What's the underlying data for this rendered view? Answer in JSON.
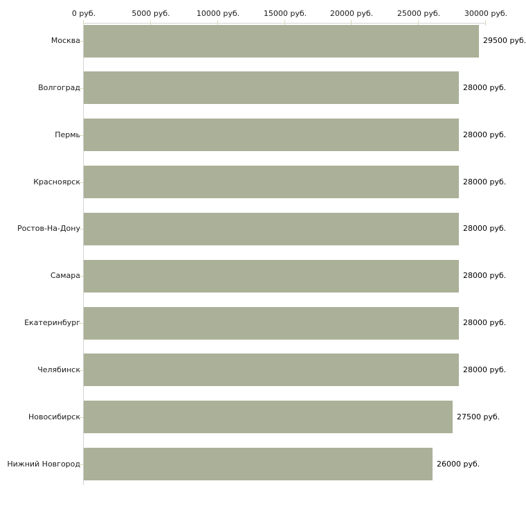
{
  "chart_data": {
    "type": "bar",
    "orientation": "horizontal",
    "title": "",
    "xlabel": "",
    "ylabel": "",
    "categories": [
      "Москва",
      "Волгоград",
      "Пермь",
      "Красноярск",
      "Ростов-На-Дону",
      "Самара",
      "Екатеринбург",
      "Челябинск",
      "Новосибирск",
      "Нижний Новгород"
    ],
    "values": [
      29500,
      28000,
      28000,
      28000,
      28000,
      28000,
      28000,
      28000,
      27500,
      26000
    ],
    "value_labels": [
      "29500 руб.",
      "28000 руб.",
      "28000 руб.",
      "28000 руб.",
      "28000 руб.",
      "28000 руб.",
      "28000 руб.",
      "28000 руб.",
      "27500 руб.",
      "26000 руб."
    ],
    "xlim": [
      0,
      30000
    ],
    "x_tick_values": [
      0,
      5000,
      10000,
      15000,
      20000,
      25000,
      30000
    ],
    "x_tick_labels": [
      "0 руб.",
      "5000 руб.",
      "10000 руб.",
      "15000 руб.",
      "20000 руб.",
      "25000 руб.",
      "30000 руб."
    ],
    "grid": false,
    "legend": false,
    "axis_position": "top",
    "colors": {
      "bar": "#aab198",
      "axis_line": "#d3d3d3",
      "tick_mark": "#d9d7b4",
      "text": "#1a1a1a",
      "background": "#ffffff"
    }
  }
}
